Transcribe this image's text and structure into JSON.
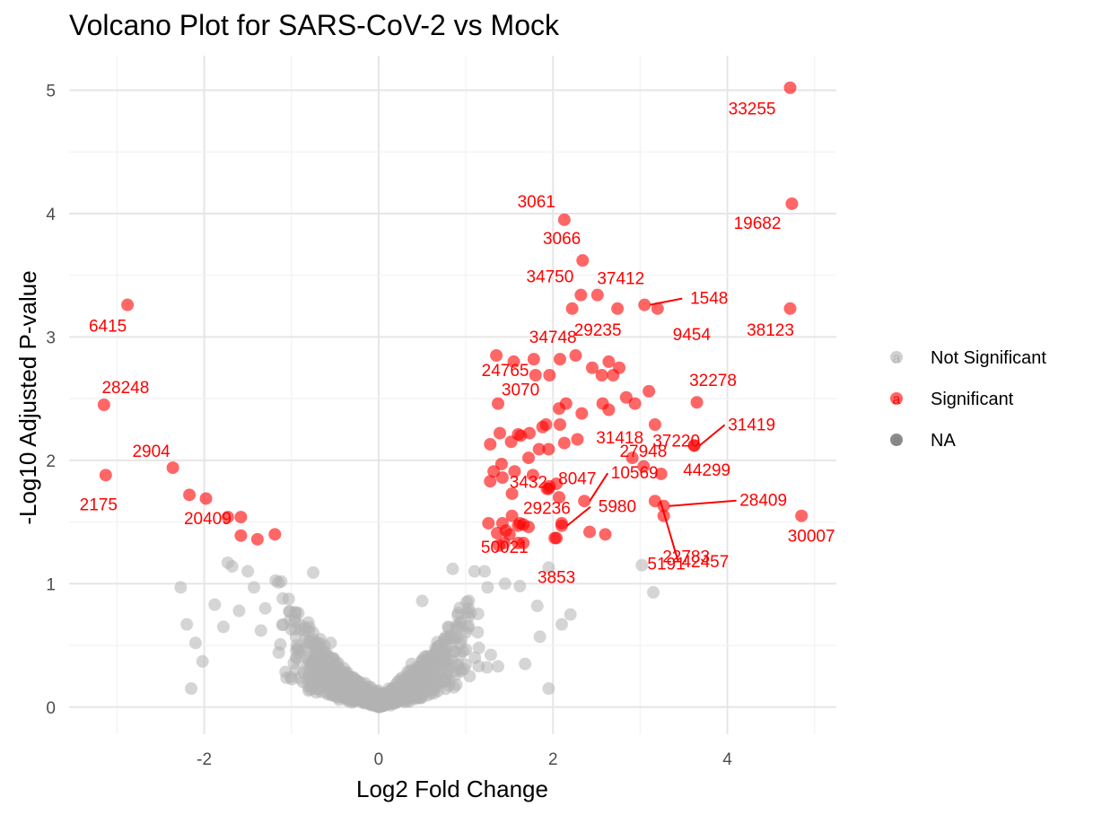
{
  "colors": {
    "not_significant": "#b3b3b3",
    "significant": "#ff0000",
    "na": "#808080",
    "grid_major": "#e6e6e6",
    "grid_minor": "#f2f2f2"
  },
  "chart_data": {
    "type": "scatter",
    "title": "Volcano Plot for SARS-CoV-2 vs Mock",
    "xlabel": "Log2 Fold Change",
    "ylabel": "-Log10 Adjusted P-value",
    "xlim": [
      -3.55,
      5.25
    ],
    "ylim": [
      -0.22,
      5.28
    ],
    "x_ticks": [
      -2,
      0,
      2,
      4
    ],
    "y_ticks": [
      0,
      1,
      2,
      3,
      4,
      5
    ],
    "grid": true,
    "legend": {
      "position": "right",
      "entries": [
        {
          "label": "Not Significant",
          "color": "#b3b3b3"
        },
        {
          "label": "Significant",
          "color": "#ff0000"
        },
        {
          "label": "NA",
          "color": "#808080"
        }
      ]
    },
    "significant_labeled": [
      {
        "id": "33255",
        "x": 4.72,
        "y": 5.02
      },
      {
        "id": "3061",
        "x": 2.13,
        "y": 3.95
      },
      {
        "id": "19682",
        "x": 4.74,
        "y": 4.08
      },
      {
        "id": "3066",
        "x": 2.34,
        "y": 3.62
      },
      {
        "id": "34750",
        "x": 2.32,
        "y": 3.34
      },
      {
        "id": "37412",
        "x": 2.51,
        "y": 3.34
      },
      {
        "id": "1548",
        "x": 3.05,
        "y": 3.26
      },
      {
        "id": "6415",
        "x": -2.88,
        "y": 3.26
      },
      {
        "id": "34748",
        "x": 2.22,
        "y": 3.23
      },
      {
        "id": "29235",
        "x": 2.74,
        "y": 3.23
      },
      {
        "id": "9454",
        "x": 3.2,
        "y": 3.23
      },
      {
        "id": "38123",
        "x": 4.72,
        "y": 3.23
      },
      {
        "id": "24765",
        "x": 1.35,
        "y": 2.85
      },
      {
        "id": "28248",
        "x": -3.15,
        "y": 2.45
      },
      {
        "id": "3070",
        "x": 1.37,
        "y": 2.46
      },
      {
        "id": "32278",
        "x": 3.65,
        "y": 2.47
      },
      {
        "id": "27948",
        "x": 3.17,
        "y": 2.29
      },
      {
        "id": "31418",
        "x": 2.91,
        "y": 2.02
      },
      {
        "id": "37220",
        "x": 3.62,
        "y": 2.12
      },
      {
        "id": "31419",
        "x": 3.62,
        "y": 2.12
      },
      {
        "id": "2904",
        "x": -2.36,
        "y": 1.94
      },
      {
        "id": "8047",
        "x": 3.04,
        "y": 1.95
      },
      {
        "id": "3432",
        "x": 1.77,
        "y": 1.88
      },
      {
        "id": "2175",
        "x": -3.13,
        "y": 1.88
      },
      {
        "id": "44299",
        "x": 3.24,
        "y": 1.89
      },
      {
        "id": "10569",
        "x": 2.36,
        "y": 1.67
      },
      {
        "id": "29236",
        "x": 1.95,
        "y": 1.77
      },
      {
        "id": "20409",
        "x": -1.58,
        "y": 1.54
      },
      {
        "id": "28409",
        "x": 3.27,
        "y": 1.63
      },
      {
        "id": "5980",
        "x": 2.1,
        "y": 1.47
      },
      {
        "id": "50021",
        "x": 1.62,
        "y": 1.49
      },
      {
        "id": "30007",
        "x": 4.85,
        "y": 1.55
      },
      {
        "id": "22783",
        "x": 3.27,
        "y": 1.55
      },
      {
        "id": "3853",
        "x": 2.04,
        "y": 1.37
      },
      {
        "id": "5191",
        "x": 2.6,
        "y": 1.4
      },
      {
        "id": "42457",
        "x": 3.17,
        "y": 1.67
      }
    ],
    "significant_unlabeled": [
      [
        -2.17,
        1.72
      ],
      [
        -1.98,
        1.69
      ],
      [
        -1.73,
        1.54
      ],
      [
        -1.58,
        1.39
      ],
      [
        -1.39,
        1.36
      ],
      [
        -1.19,
        1.4
      ],
      [
        1.39,
        2.22
      ],
      [
        1.41,
        1.97
      ],
      [
        1.28,
        2.13
      ],
      [
        1.52,
        2.15
      ],
      [
        1.6,
        2.21
      ],
      [
        1.63,
        2.2
      ],
      [
        1.73,
        2.22
      ],
      [
        1.88,
        2.27
      ],
      [
        1.92,
        2.29
      ],
      [
        2.08,
        2.29
      ],
      [
        2.13,
        2.14
      ],
      [
        2.15,
        2.46
      ],
      [
        2.28,
        2.17
      ],
      [
        2.33,
        2.38
      ],
      [
        2.57,
        2.46
      ],
      [
        2.64,
        2.41
      ],
      [
        2.84,
        2.51
      ],
      [
        2.94,
        2.46
      ],
      [
        3.1,
        2.56
      ],
      [
        1.8,
        2.69
      ],
      [
        1.96,
        2.69
      ],
      [
        2.08,
        2.82
      ],
      [
        2.26,
        2.85
      ],
      [
        2.45,
        2.75
      ],
      [
        2.56,
        2.69
      ],
      [
        2.64,
        2.8
      ],
      [
        2.69,
        2.69
      ],
      [
        2.76,
        2.75
      ],
      [
        1.78,
        2.82
      ],
      [
        1.55,
        2.8
      ],
      [
        2.07,
        2.42
      ],
      [
        1.84,
        2.09
      ],
      [
        1.95,
        2.09
      ],
      [
        1.72,
        2.02
      ],
      [
        1.56,
        1.91
      ],
      [
        1.42,
        1.86
      ],
      [
        1.28,
        1.83
      ],
      [
        1.32,
        1.91
      ],
      [
        1.53,
        1.73
      ],
      [
        1.93,
        1.77
      ],
      [
        2.04,
        1.81
      ],
      [
        1.96,
        1.79
      ],
      [
        2.07,
        1.7
      ],
      [
        1.26,
        1.49
      ],
      [
        1.42,
        1.49
      ],
      [
        1.53,
        1.55
      ],
      [
        1.6,
        1.47
      ],
      [
        1.36,
        1.41
      ],
      [
        1.46,
        1.43
      ],
      [
        1.72,
        1.46
      ],
      [
        1.38,
        1.31
      ],
      [
        1.44,
        1.33
      ],
      [
        1.6,
        1.33
      ],
      [
        1.66,
        1.33
      ],
      [
        2.02,
        1.37
      ],
      [
        2.42,
        1.42
      ],
      [
        2.1,
        1.49
      ],
      [
        1.5,
        1.4
      ],
      [
        1.66,
        1.48
      ]
    ],
    "not_significant_points_note": "approx. 1,500 genes with -log10 adjusted p-value below ~1.3, concentrated near log2 fold change 0 (V-shaped cloud)",
    "not_significant_sample": [
      [
        -1.73,
        1.17
      ],
      [
        -1.68,
        1.14
      ],
      [
        -1.5,
        1.1
      ],
      [
        -2.27,
        0.97
      ],
      [
        -2.2,
        0.67
      ],
      [
        -2.1,
        0.52
      ],
      [
        -2.02,
        0.37
      ],
      [
        -2.15,
        0.15
      ],
      [
        -1.88,
        0.83
      ],
      [
        -1.78,
        0.65
      ],
      [
        -1.6,
        0.78
      ],
      [
        -1.43,
        0.97
      ],
      [
        -1.3,
        0.8
      ],
      [
        -1.15,
        1.01
      ],
      [
        -0.75,
        1.09
      ],
      [
        -1.1,
        0.88
      ],
      [
        -1.35,
        0.62
      ],
      [
        -0.55,
        0.52
      ],
      [
        -0.95,
        0.3
      ],
      [
        -0.6,
        0.12
      ],
      [
        0.5,
        0.86
      ],
      [
        0.85,
        1.12
      ],
      [
        1.1,
        1.1
      ],
      [
        1.25,
        0.97
      ],
      [
        1.45,
        1.0
      ],
      [
        1.62,
        0.98
      ],
      [
        1.82,
        0.82
      ],
      [
        1.95,
        1.13
      ],
      [
        2.1,
        0.67
      ],
      [
        2.2,
        0.75
      ],
      [
        3.02,
        1.15
      ],
      [
        3.15,
        0.93
      ],
      [
        1.95,
        0.15
      ],
      [
        1.68,
        0.35
      ],
      [
        1.37,
        0.33
      ],
      [
        1.85,
        0.57
      ],
      [
        0.95,
        0.55
      ],
      [
        0.72,
        0.5
      ],
      [
        0.38,
        0.35
      ],
      [
        1.15,
        0.48
      ]
    ]
  }
}
